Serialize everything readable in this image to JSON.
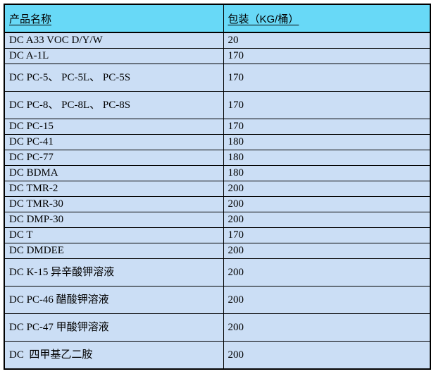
{
  "table": {
    "headers": {
      "product": "产品名称",
      "package": "包装（KG/桶）"
    },
    "rows": [
      {
        "name": "DC A33 VOC D/Y/W",
        "package": "20"
      },
      {
        "name": "DC A-1L",
        "package": "170"
      },
      {
        "name": "DC PC-5、 PC-5L、 PC-5S",
        "package": "170"
      },
      {
        "name": "DC PC-8、 PC-8L、 PC-8S",
        "package": "170"
      },
      {
        "name": "DC PC-15",
        "package": "170"
      },
      {
        "name": "DC PC-41",
        "package": "180"
      },
      {
        "name": "DC PC-77",
        "package": "180"
      },
      {
        "name": "DC BDMA",
        "package": "180"
      },
      {
        "name": "DC TMR-2",
        "package": "200"
      },
      {
        "name": "DC TMR-30",
        "package": "200"
      },
      {
        "name": "DC DMP-30",
        "package": "200"
      },
      {
        "name": "DC T",
        "package": "170"
      },
      {
        "name": "DC DMDEE",
        "package": "200"
      },
      {
        "name": "DC K-15 异辛酸钾溶液",
        "package": "200"
      },
      {
        "name": "DC PC-46 醋酸钾溶液",
        "package": "200"
      },
      {
        "name": "DC PC-47 甲酸钾溶液",
        "package": "200"
      },
      {
        "name": "DC  四甲基乙二胺",
        "package": "200"
      }
    ]
  },
  "colors": {
    "header_bg": "#68D9F7",
    "row_bg": "#CBDEF5",
    "border": "#000000",
    "text": "#000000"
  }
}
